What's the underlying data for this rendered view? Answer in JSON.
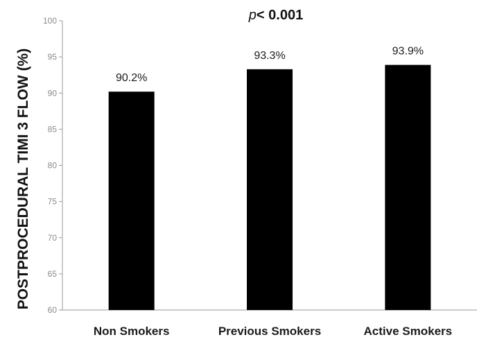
{
  "chart_data": {
    "type": "bar",
    "title": "",
    "annotation": {
      "p_symbol": "p",
      "p_rest": "< 0.001"
    },
    "ylabel": "POSTPROCEDURAL TIMI 3 FLOW (%)",
    "xlabel": "",
    "ylim": [
      60,
      100
    ],
    "yticks": [
      "60",
      "65",
      "70",
      "75",
      "80",
      "85",
      "90",
      "95",
      "100"
    ],
    "categories": [
      "Non Smokers",
      "Previous Smokers",
      "Active Smokers"
    ],
    "values": [
      90.2,
      93.3,
      93.9
    ],
    "data_labels": [
      "90.2%",
      "93.3%",
      "93.9%"
    ],
    "bar_color": "#000000",
    "grid": false,
    "legend": "none"
  }
}
